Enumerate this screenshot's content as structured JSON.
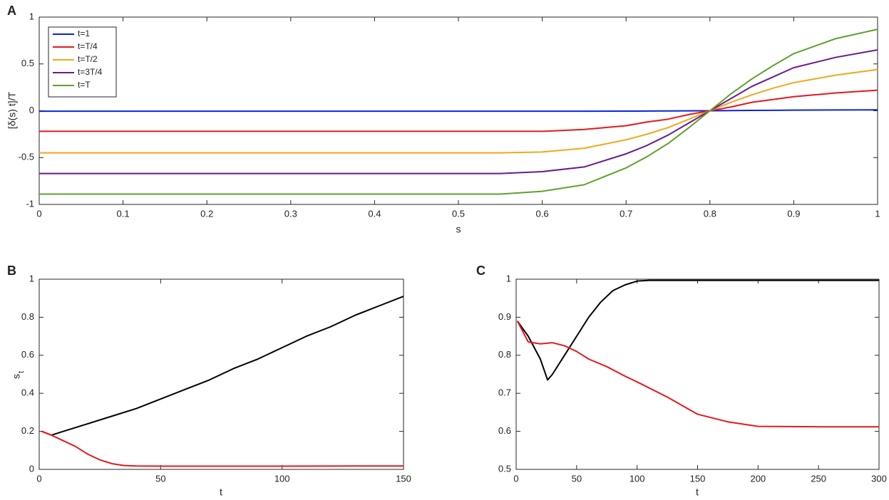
{
  "chart_data": [
    {
      "type": "line",
      "panel_label": "A",
      "xlabel": "s",
      "ylabel": "[δ(s) t]/T",
      "xlim": [
        0,
        1
      ],
      "ylim": [
        -1,
        1
      ],
      "xticks": [
        0,
        0.1,
        0.2,
        0.3,
        0.4,
        0.5,
        0.6,
        0.7,
        0.8,
        0.9,
        1
      ],
      "yticks": [
        -1,
        -0.5,
        0,
        0.5,
        1
      ],
      "legend": "upper left",
      "x": [
        0,
        0.1,
        0.2,
        0.3,
        0.4,
        0.5,
        0.55,
        0.6,
        0.65,
        0.7,
        0.725,
        0.75,
        0.775,
        0.8,
        0.825,
        0.85,
        0.875,
        0.9,
        0.95,
        1
      ],
      "series": [
        {
          "name": "t=1",
          "color": "#0b24d8",
          "values": [
            -0.005,
            -0.005,
            -0.005,
            -0.005,
            -0.005,
            -0.005,
            -0.005,
            -0.005,
            -0.005,
            -0.004,
            -0.003,
            -0.002,
            -0.001,
            0,
            0.002,
            0.004,
            0.005,
            0.007,
            0.009,
            0.01
          ]
        },
        {
          "name": "t=T/4",
          "color": "#e41a1c",
          "values": [
            -0.22,
            -0.22,
            -0.22,
            -0.22,
            -0.22,
            -0.22,
            -0.22,
            -0.22,
            -0.2,
            -0.16,
            -0.12,
            -0.09,
            -0.04,
            0,
            0.04,
            0.09,
            0.12,
            0.15,
            0.19,
            0.22
          ]
        },
        {
          "name": "t=T/2",
          "color": "#f0a81c",
          "values": [
            -0.45,
            -0.45,
            -0.45,
            -0.45,
            -0.45,
            -0.45,
            -0.45,
            -0.44,
            -0.4,
            -0.31,
            -0.25,
            -0.18,
            -0.09,
            0,
            0.09,
            0.17,
            0.24,
            0.3,
            0.38,
            0.44
          ]
        },
        {
          "name": "t=3T/4",
          "color": "#6a1b8a",
          "values": [
            -0.67,
            -0.67,
            -0.67,
            -0.67,
            -0.67,
            -0.67,
            -0.67,
            -0.65,
            -0.6,
            -0.46,
            -0.37,
            -0.26,
            -0.13,
            0,
            0.13,
            0.26,
            0.36,
            0.46,
            0.57,
            0.65
          ]
        },
        {
          "name": "t=T",
          "color": "#5fa12a",
          "values": [
            -0.89,
            -0.89,
            -0.89,
            -0.89,
            -0.89,
            -0.89,
            -0.89,
            -0.86,
            -0.79,
            -0.61,
            -0.49,
            -0.35,
            -0.18,
            0,
            0.18,
            0.34,
            0.48,
            0.61,
            0.77,
            0.87
          ]
        }
      ]
    },
    {
      "type": "line",
      "panel_label": "B",
      "xlabel": "t",
      "ylabel": "s",
      "ylabel_subscript": "t",
      "xlim": [
        0,
        150
      ],
      "ylim": [
        0,
        1
      ],
      "xticks": [
        0,
        50,
        100,
        150
      ],
      "yticks": [
        0,
        0.2,
        0.4,
        0.6,
        0.8,
        1
      ],
      "series": [
        {
          "color": "#000000",
          "x": [
            1,
            5,
            10,
            20,
            30,
            40,
            50,
            60,
            70,
            80,
            90,
            100,
            110,
            120,
            130,
            140,
            150
          ],
          "values": [
            0.2,
            0.18,
            0.2,
            0.24,
            0.28,
            0.32,
            0.37,
            0.42,
            0.47,
            0.53,
            0.58,
            0.64,
            0.7,
            0.75,
            0.81,
            0.86,
            0.91
          ]
        },
        {
          "color": "#e41a1c",
          "x": [
            1,
            5,
            10,
            15,
            20,
            25,
            30,
            35,
            40,
            50,
            100,
            150
          ],
          "values": [
            0.2,
            0.18,
            0.15,
            0.12,
            0.08,
            0.05,
            0.03,
            0.02,
            0.018,
            0.017,
            0.017,
            0.018
          ]
        }
      ]
    },
    {
      "type": "line",
      "panel_label": "C",
      "xlabel": "t",
      "xlim": [
        0,
        300
      ],
      "ylim": [
        0.5,
        1
      ],
      "xticks": [
        0,
        50,
        100,
        150,
        200,
        250,
        300
      ],
      "yticks": [
        0.5,
        0.6,
        0.7,
        0.8,
        0.9,
        1
      ],
      "series": [
        {
          "color": "#000000",
          "x": [
            1,
            10,
            20,
            26,
            30,
            40,
            50,
            60,
            70,
            80,
            90,
            100,
            110,
            150,
            200,
            250,
            300
          ],
          "values": [
            0.89,
            0.85,
            0.79,
            0.735,
            0.75,
            0.8,
            0.85,
            0.9,
            0.94,
            0.97,
            0.985,
            0.995,
            0.997,
            0.997,
            0.997,
            0.997,
            0.997
          ]
        },
        {
          "color": "#e41a1c",
          "x": [
            1,
            10,
            20,
            30,
            40,
            50,
            60,
            75,
            90,
            100,
            125,
            150,
            175,
            200,
            250,
            300
          ],
          "values": [
            0.89,
            0.835,
            0.83,
            0.833,
            0.825,
            0.81,
            0.79,
            0.77,
            0.745,
            0.73,
            0.69,
            0.645,
            0.625,
            0.613,
            0.612,
            0.612
          ]
        }
      ]
    }
  ]
}
